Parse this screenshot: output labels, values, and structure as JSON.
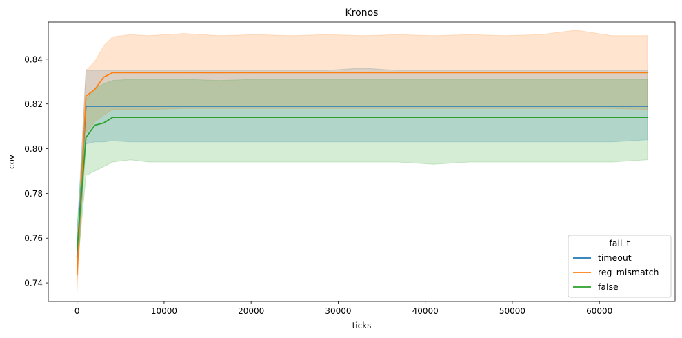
{
  "chart_data": {
    "type": "line",
    "title": "Kronos",
    "xlabel": "ticks",
    "ylabel": "cov",
    "xlim": [
      -3300,
      68700
    ],
    "ylim": [
      0.7317,
      0.8566
    ],
    "xticks": [
      0,
      10000,
      20000,
      30000,
      40000,
      50000,
      60000
    ],
    "yticks": [
      0.74,
      0.76,
      0.78,
      0.8,
      0.82,
      0.84
    ],
    "ytick_decimals": 2,
    "grid": false,
    "legend": {
      "title": "fail_t",
      "location": "lower right"
    },
    "x": [
      0,
      1024,
      2048,
      3072,
      4096,
      6144,
      8192,
      12288,
      16384,
      20480,
      24576,
      28672,
      32768,
      36864,
      40960,
      45056,
      49152,
      53248,
      57344,
      61440,
      65536
    ],
    "series": [
      {
        "name": "timeout",
        "color": "#1f77b4",
        "values": [
          0.7515,
          0.819,
          0.819,
          0.819,
          0.819,
          0.819,
          0.819,
          0.819,
          0.819,
          0.819,
          0.819,
          0.819,
          0.819,
          0.819,
          0.819,
          0.819,
          0.819,
          0.819,
          0.819,
          0.819,
          0.819
        ],
        "lower": [
          0.742,
          0.802,
          0.803,
          0.803,
          0.8035,
          0.803,
          0.803,
          0.803,
          0.803,
          0.803,
          0.803,
          0.803,
          0.803,
          0.803,
          0.803,
          0.803,
          0.803,
          0.803,
          0.803,
          0.803,
          0.804
        ],
        "upper": [
          0.762,
          0.835,
          0.835,
          0.835,
          0.835,
          0.835,
          0.835,
          0.835,
          0.835,
          0.835,
          0.835,
          0.835,
          0.836,
          0.835,
          0.835,
          0.835,
          0.835,
          0.835,
          0.835,
          0.835,
          0.835
        ]
      },
      {
        "name": "reg_mismatch",
        "color": "#ff7f0e",
        "values": [
          0.7435,
          0.8235,
          0.8265,
          0.832,
          0.834,
          0.834,
          0.834,
          0.834,
          0.834,
          0.834,
          0.834,
          0.834,
          0.834,
          0.834,
          0.834,
          0.834,
          0.834,
          0.834,
          0.834,
          0.834,
          0.834
        ],
        "lower": [
          0.736,
          0.807,
          0.812,
          0.815,
          0.8175,
          0.8175,
          0.8175,
          0.818,
          0.818,
          0.818,
          0.818,
          0.818,
          0.818,
          0.818,
          0.818,
          0.818,
          0.818,
          0.818,
          0.818,
          0.818,
          0.8175
        ],
        "upper": [
          0.752,
          0.835,
          0.839,
          0.846,
          0.85,
          0.851,
          0.8505,
          0.8515,
          0.8505,
          0.851,
          0.8505,
          0.851,
          0.8505,
          0.851,
          0.8505,
          0.851,
          0.8505,
          0.851,
          0.853,
          0.8505,
          0.8505
        ]
      },
      {
        "name": "false",
        "color": "#2ca02c",
        "values": [
          0.7545,
          0.805,
          0.8105,
          0.8115,
          0.814,
          0.814,
          0.814,
          0.814,
          0.814,
          0.814,
          0.814,
          0.814,
          0.814,
          0.814,
          0.814,
          0.814,
          0.814,
          0.814,
          0.814,
          0.814,
          0.814
        ],
        "lower": [
          0.745,
          0.788,
          0.79,
          0.792,
          0.794,
          0.795,
          0.794,
          0.794,
          0.794,
          0.794,
          0.794,
          0.794,
          0.794,
          0.794,
          0.793,
          0.794,
          0.794,
          0.794,
          0.794,
          0.794,
          0.795
        ],
        "upper": [
          0.764,
          0.822,
          0.827,
          0.829,
          0.8305,
          0.831,
          0.831,
          0.831,
          0.8305,
          0.831,
          0.831,
          0.831,
          0.831,
          0.831,
          0.831,
          0.831,
          0.831,
          0.831,
          0.831,
          0.831,
          0.831
        ]
      }
    ]
  }
}
